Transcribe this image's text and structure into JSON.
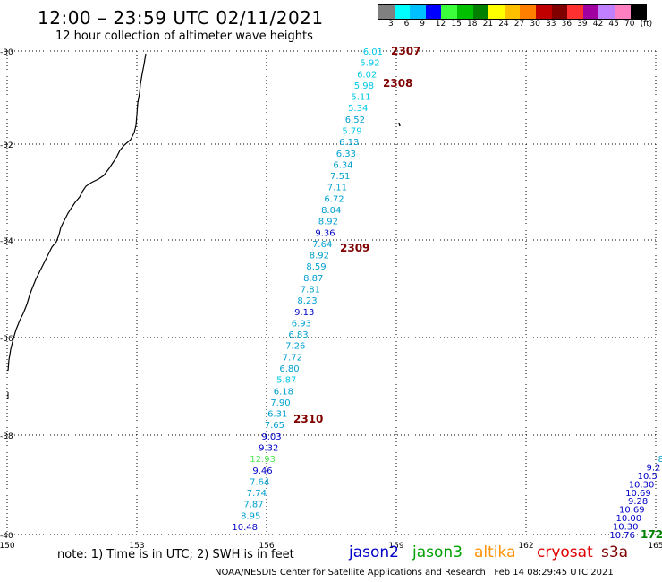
{
  "header": {
    "title": "12:00 – 23:59 UTC 02/11/2021",
    "subtitle": "12 hour collection of altimeter wave heights"
  },
  "legend": {
    "colors": [
      "#808080",
      "#00ffff",
      "#00c0ff",
      "#0000ff",
      "#3cff3c",
      "#00c000",
      "#008000",
      "#ffff00",
      "#ffc000",
      "#ff8000",
      "#c00000",
      "#800000",
      "#ff3030",
      "#a000a0",
      "#c080ff",
      "#ff80c0",
      "#000000"
    ],
    "ticks": [
      "3",
      "6",
      "9",
      "12",
      "15",
      "18",
      "21",
      "24",
      "27",
      "30",
      "33",
      "36",
      "39",
      "42",
      "45",
      "70",
      "(ft)"
    ]
  },
  "axes": {
    "lat_labels": [
      "-30",
      "-32",
      "-34",
      "-36",
      "-38",
      "-40"
    ],
    "lon_labels": [
      "150",
      "153",
      "156",
      "159",
      "162",
      "165"
    ]
  },
  "passes": [
    {
      "id": "2307",
      "color": "#800000"
    },
    {
      "id": "2308",
      "color": "#800000"
    },
    {
      "id": "2309",
      "color": "#800000"
    },
    {
      "id": "2310",
      "color": "#800000"
    },
    {
      "id": "172",
      "color": "#008000"
    }
  ],
  "track_west": [
    {
      "v": "6.01",
      "c": "#00c8e6"
    },
    {
      "v": "5.92",
      "c": "#00c8e6"
    },
    {
      "v": "6.02",
      "c": "#00c8e6"
    },
    {
      "v": "5.98",
      "c": "#00c8e6"
    },
    {
      "v": "5.11",
      "c": "#00c8e6"
    },
    {
      "v": "5.34",
      "c": "#00c8e6"
    },
    {
      "v": "6.52",
      "c": "#00a0d0"
    },
    {
      "v": "5.79",
      "c": "#00c8e6"
    },
    {
      "v": "6.13",
      "c": "#00a0d0"
    },
    {
      "v": "6.33",
      "c": "#00a0d0"
    },
    {
      "v": "6.34",
      "c": "#00a0d0"
    },
    {
      "v": "7.51",
      "c": "#00a0d0"
    },
    {
      "v": "7.11",
      "c": "#00a0d0"
    },
    {
      "v": "6.72",
      "c": "#00a0d0"
    },
    {
      "v": "8.04",
      "c": "#00a0d0"
    },
    {
      "v": "8.92",
      "c": "#00a0d0"
    },
    {
      "v": "9.36",
      "c": "#0000c8"
    },
    {
      "v": "7.64",
      "c": "#00a0d0"
    },
    {
      "v": "8.92",
      "c": "#00a0d0"
    },
    {
      "v": "8.59",
      "c": "#00a0d0"
    },
    {
      "v": "8.87",
      "c": "#00a0d0"
    },
    {
      "v": "7.81",
      "c": "#00a0d0"
    },
    {
      "v": "8.23",
      "c": "#00a0d0"
    },
    {
      "v": "9.13",
      "c": "#0000c8"
    },
    {
      "v": "6.93",
      "c": "#00a0d0"
    },
    {
      "v": "6.83",
      "c": "#00a0d0"
    },
    {
      "v": "7.26",
      "c": "#00a0d0"
    },
    {
      "v": "7.72",
      "c": "#00a0d0"
    },
    {
      "v": "6.80",
      "c": "#00a0d0"
    },
    {
      "v": "5.87",
      "c": "#00c8e6"
    },
    {
      "v": "6.18",
      "c": "#00a0d0"
    },
    {
      "v": "7.90",
      "c": "#00a0d0"
    },
    {
      "v": "6.31",
      "c": "#00a0d0"
    },
    {
      "v": "7.65",
      "c": "#00a0d0"
    },
    {
      "v": "9.03",
      "c": "#0000c8"
    },
    {
      "v": "9.32",
      "c": "#0000c8"
    },
    {
      "v": "12.93",
      "c": "#50e650"
    },
    {
      "v": "9.46",
      "c": "#0000c8"
    },
    {
      "v": "7.64",
      "c": "#00a0d0"
    },
    {
      "v": "7.74",
      "c": "#00a0d0"
    },
    {
      "v": "7.87",
      "c": "#00a0d0"
    },
    {
      "v": "8.95",
      "c": "#00a0d0"
    },
    {
      "v": "10.48",
      "c": "#0000c8"
    }
  ],
  "track_east": [
    {
      "v": "8",
      "c": "#00a0d0"
    },
    {
      "v": "9.2",
      "c": "#0000c8"
    },
    {
      "v": "10.5",
      "c": "#0000c8"
    },
    {
      "v": "10.30",
      "c": "#0000c8"
    },
    {
      "v": "10.69",
      "c": "#0000c8"
    },
    {
      "v": "9.28",
      "c": "#0000c8"
    },
    {
      "v": "10.69",
      "c": "#0000c8"
    },
    {
      "v": "10.00",
      "c": "#0000c8"
    },
    {
      "v": "10.30",
      "c": "#0000c8"
    },
    {
      "v": "10.76",
      "c": "#0000c8"
    }
  ],
  "footer": {
    "note": "note: 1) Time is in UTC; 2) SWH is in feet",
    "missions": [
      {
        "name": "jason2",
        "color": "#0000c8"
      },
      {
        "name": "jason3",
        "color": "#00a000"
      },
      {
        "name": "altika",
        "color": "#ff9000"
      },
      {
        "name": "cryosat",
        "color": "#e00000"
      },
      {
        "name": "s3a",
        "color": "#800000"
      }
    ],
    "credit": "NOAA/NESDIS Center for Satellite Applications and Research",
    "timestamp": "Feb 14 08:29:45 UTC 2021"
  }
}
